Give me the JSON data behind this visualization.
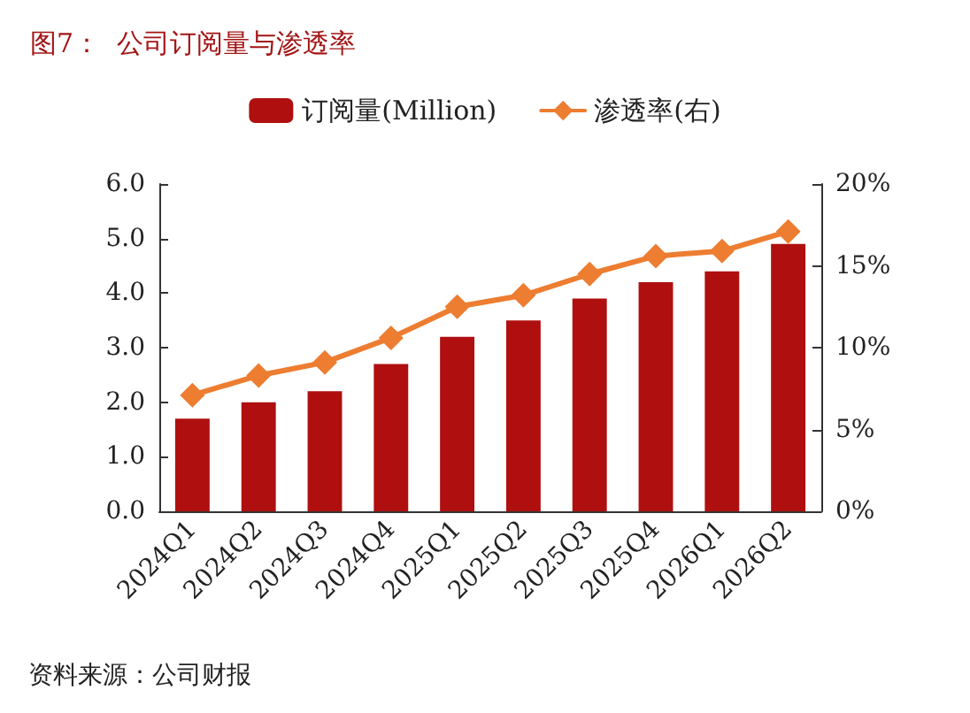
{
  "chart_data": {
    "type": "bar",
    "title": "图7：  公司订阅量与渗透率",
    "categories": [
      "2024Q1",
      "2024Q2",
      "2024Q3",
      "2024Q4",
      "2025Q1",
      "2025Q2",
      "2025Q3",
      "2025Q4",
      "2026Q1",
      "2026Q2"
    ],
    "series": [
      {
        "name": "订阅量(Million)",
        "color": "#b00f0f",
        "values": [
          1.7,
          2.0,
          2.2,
          2.7,
          3.2,
          3.5,
          3.9,
          4.2,
          4.4,
          4.9
        ]
      },
      {
        "name": "渗透率(右)",
        "type": "line",
        "axis": "y2",
        "color": "#ed7d31",
        "marker": "diamond",
        "line_style": "solid",
        "values": [
          7.1,
          8.3,
          9.1,
          10.6,
          12.5,
          13.2,
          14.5,
          15.6,
          15.9,
          17.1
        ]
      }
    ],
    "ylim": [
      0,
      6
    ],
    "yticks": [
      {
        "value": 0,
        "label": "0.0"
      },
      {
        "value": 1,
        "label": "1.0"
      },
      {
        "value": 2,
        "label": "2.0"
      },
      {
        "value": 3,
        "label": "3.0"
      },
      {
        "value": 4,
        "label": "4.0"
      },
      {
        "value": 5,
        "label": "5.0"
      },
      {
        "value": 6,
        "label": "6.0"
      }
    ],
    "y2lim": [
      0,
      20
    ],
    "y2ticks": [
      {
        "value": 0,
        "label": "0%"
      },
      {
        "value": 5,
        "label": "5%"
      },
      {
        "value": 10,
        "label": "10%"
      },
      {
        "value": 15,
        "label": "15%"
      },
      {
        "value": 20,
        "label": "20%"
      }
    ],
    "legend": "top",
    "grid": false,
    "annotations": [
      "资料来源：公司财报"
    ]
  }
}
